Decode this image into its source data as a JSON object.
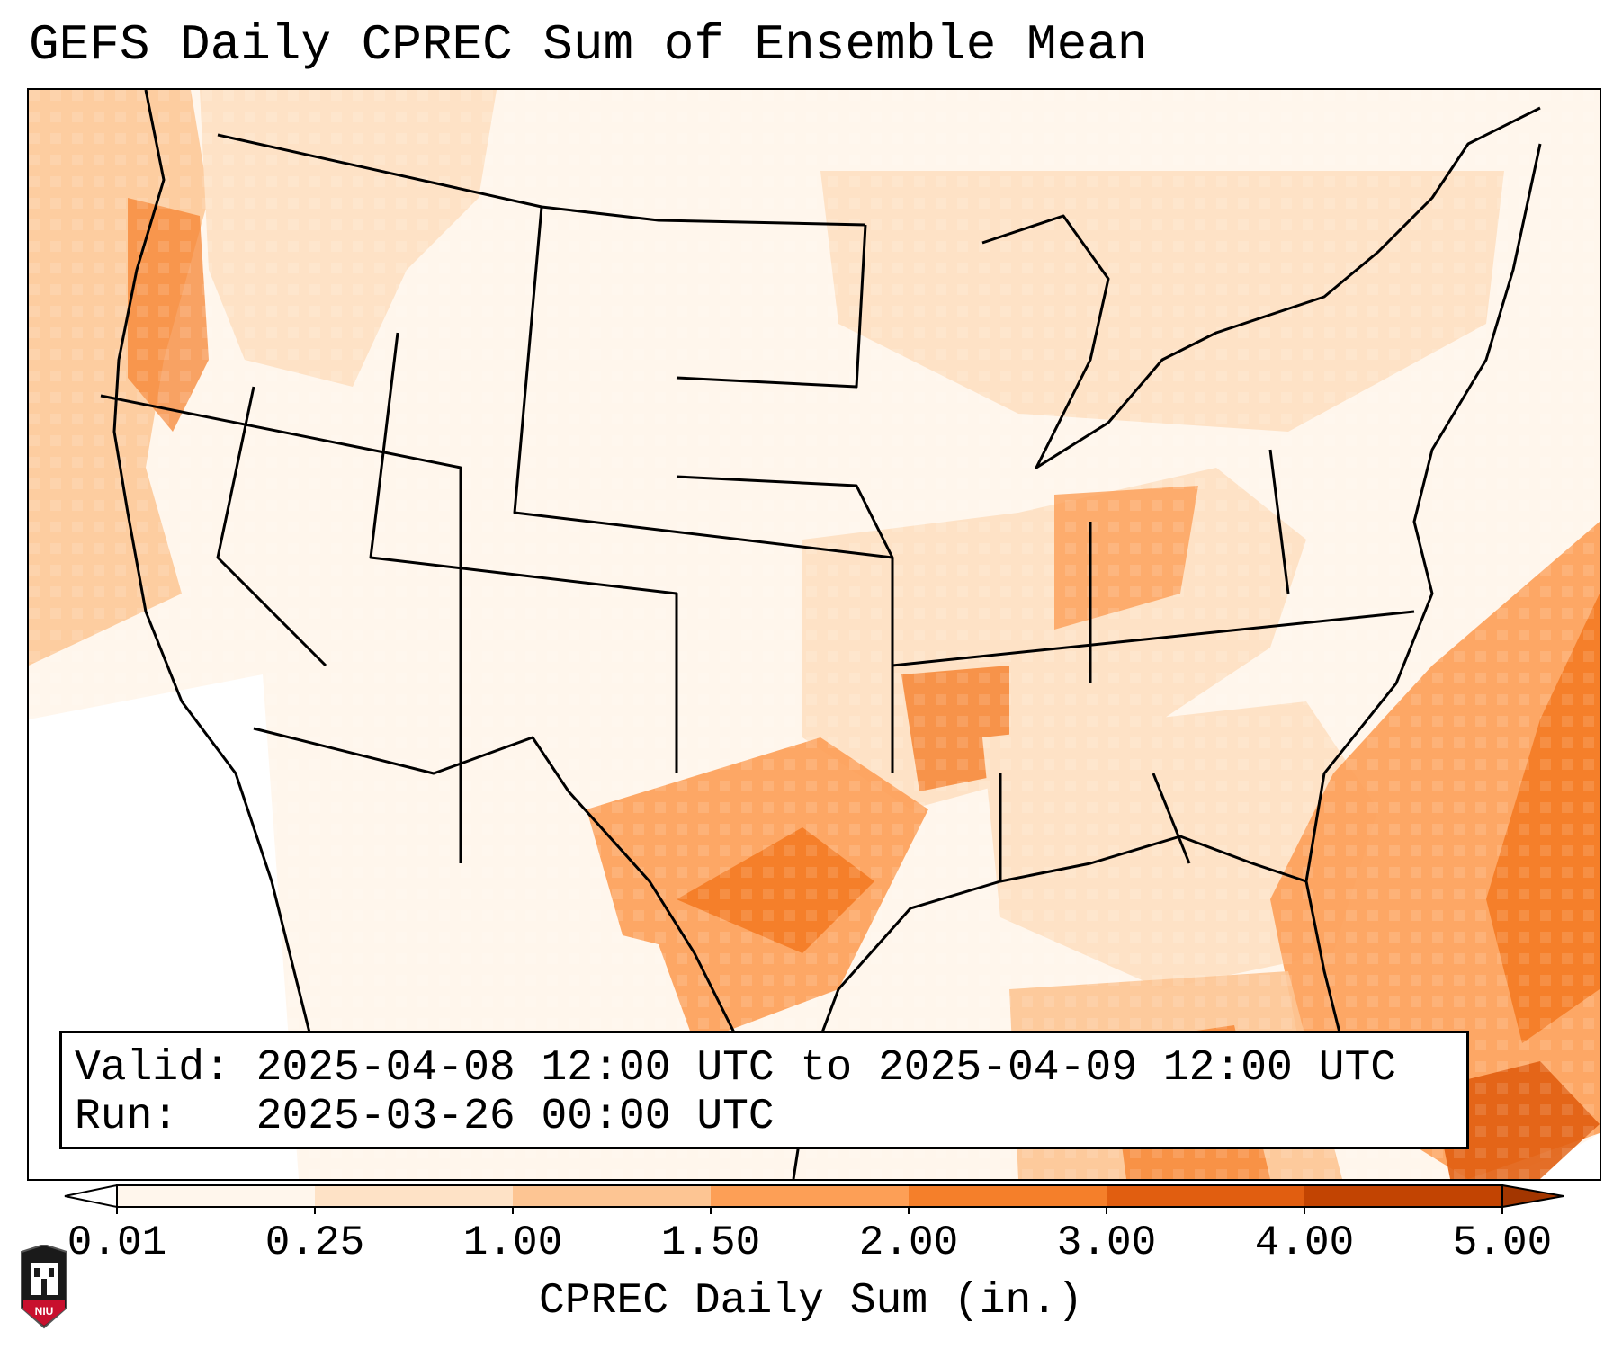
{
  "title": "GEFS Daily CPREC Sum of Ensemble Mean",
  "info": {
    "valid_label": "Valid:",
    "valid_value": "2025-04-08 12:00 UTC to 2025-04-09 12:00 UTC",
    "run_label": "Run:",
    "run_value": "2025-03-26 00:00 UTC"
  },
  "colorbar": {
    "label": "CPREC Daily Sum (in.)",
    "ticks": [
      "0.01",
      "0.25",
      "1.00",
      "1.50",
      "2.00",
      "3.00",
      "4.00",
      "5.00"
    ],
    "colors": [
      "#fff6ec",
      "#fee2c6",
      "#fdc593",
      "#fd9f56",
      "#f57f2a",
      "#e15e10",
      "#c24402"
    ],
    "under_color": "#ffffff",
    "over_color": "#a33600"
  },
  "logo": {
    "text": "NIU",
    "icon": "university-logo-icon",
    "accent": "#c8102e"
  }
}
